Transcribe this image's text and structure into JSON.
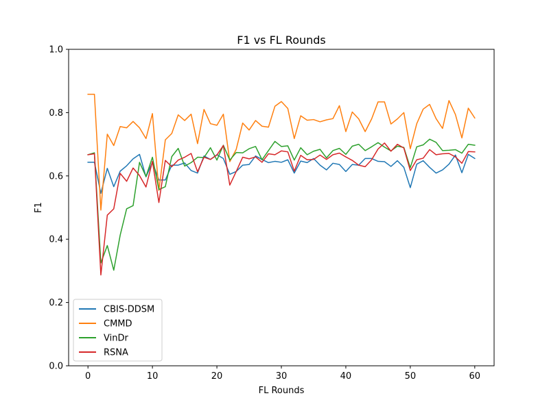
{
  "chart_data": {
    "type": "line",
    "title": "F1 vs FL Rounds",
    "xlabel": "FL Rounds",
    "ylabel": "F1",
    "xlim": [
      -3,
      63
    ],
    "ylim": [
      0.0,
      1.0
    ],
    "xticks": [
      "0",
      "10",
      "20",
      "30",
      "40",
      "50",
      "60"
    ],
    "xtick_values": [
      0,
      10,
      20,
      30,
      40,
      50,
      60
    ],
    "yticks": [
      "0.0",
      "0.2",
      "0.4",
      "0.6",
      "0.8",
      "1.0"
    ],
    "ytick_values": [
      0.0,
      0.2,
      0.4,
      0.6,
      0.8,
      1.0
    ],
    "grid": false,
    "legend_position": "lower-left",
    "x": [
      0,
      1,
      2,
      3,
      4,
      5,
      6,
      7,
      8,
      9,
      10,
      11,
      12,
      13,
      14,
      15,
      16,
      17,
      18,
      19,
      20,
      21,
      22,
      23,
      24,
      25,
      26,
      27,
      28,
      29,
      30,
      31,
      32,
      33,
      34,
      35,
      36,
      37,
      38,
      39,
      40,
      41,
      42,
      43,
      44,
      45,
      46,
      47,
      48,
      49,
      50,
      51,
      52,
      53,
      54,
      55,
      56,
      57,
      58,
      59,
      60
    ],
    "series": [
      {
        "name": "CBIS-DDSM",
        "color": "#1f77b4",
        "values": [
          0.643,
          0.643,
          0.545,
          0.624,
          0.566,
          0.615,
          0.632,
          0.654,
          0.668,
          0.597,
          0.643,
          0.587,
          0.587,
          0.634,
          0.634,
          0.641,
          0.617,
          0.609,
          0.663,
          0.652,
          0.667,
          0.655,
          0.605,
          0.614,
          0.634,
          0.636,
          0.663,
          0.652,
          0.642,
          0.646,
          0.643,
          0.651,
          0.609,
          0.647,
          0.642,
          0.655,
          0.634,
          0.619,
          0.64,
          0.636,
          0.614,
          0.636,
          0.634,
          0.655,
          0.655,
          0.646,
          0.645,
          0.63,
          0.648,
          0.627,
          0.563,
          0.637,
          0.648,
          0.627,
          0.609,
          0.619,
          0.637,
          0.666,
          0.61,
          0.668,
          0.655
        ]
      },
      {
        "name": "CMMD",
        "color": "#ff7f0e",
        "values": [
          0.858,
          0.858,
          0.492,
          0.732,
          0.696,
          0.756,
          0.752,
          0.772,
          0.752,
          0.718,
          0.797,
          0.554,
          0.714,
          0.734,
          0.793,
          0.775,
          0.795,
          0.702,
          0.81,
          0.765,
          0.76,
          0.795,
          0.645,
          0.684,
          0.767,
          0.745,
          0.775,
          0.757,
          0.754,
          0.82,
          0.835,
          0.813,
          0.718,
          0.79,
          0.776,
          0.778,
          0.771,
          0.777,
          0.781,
          0.822,
          0.74,
          0.802,
          0.78,
          0.74,
          0.78,
          0.834,
          0.834,
          0.764,
          0.78,
          0.8,
          0.686,
          0.765,
          0.811,
          0.826,
          0.781,
          0.75,
          0.838,
          0.794,
          0.72,
          0.814,
          0.783
        ]
      },
      {
        "name": "VinDr",
        "color": "#2ca02c",
        "values": [
          0.667,
          0.673,
          0.325,
          0.38,
          0.302,
          0.413,
          0.496,
          0.506,
          0.643,
          0.598,
          0.659,
          0.557,
          0.566,
          0.661,
          0.687,
          0.631,
          0.642,
          0.659,
          0.658,
          0.689,
          0.65,
          0.697,
          0.65,
          0.674,
          0.673,
          0.686,
          0.693,
          0.651,
          0.68,
          0.709,
          0.693,
          0.695,
          0.65,
          0.689,
          0.667,
          0.678,
          0.684,
          0.657,
          0.68,
          0.687,
          0.668,
          0.694,
          0.7,
          0.68,
          0.692,
          0.705,
          0.691,
          0.679,
          0.694,
          0.69,
          0.626,
          0.692,
          0.698,
          0.716,
          0.706,
          0.68,
          0.681,
          0.683,
          0.672,
          0.7,
          0.697
        ]
      },
      {
        "name": "RSNA",
        "color": "#d62728",
        "values": [
          0.667,
          0.67,
          0.287,
          0.476,
          0.496,
          0.608,
          0.583,
          0.625,
          0.601,
          0.565,
          0.646,
          0.516,
          0.649,
          0.629,
          0.65,
          0.659,
          0.671,
          0.613,
          0.659,
          0.652,
          0.666,
          0.696,
          0.571,
          0.614,
          0.659,
          0.654,
          0.66,
          0.643,
          0.67,
          0.667,
          0.679,
          0.676,
          0.615,
          0.665,
          0.651,
          0.652,
          0.666,
          0.652,
          0.667,
          0.672,
          0.66,
          0.649,
          0.634,
          0.629,
          0.651,
          0.685,
          0.704,
          0.678,
          0.7,
          0.688,
          0.617,
          0.651,
          0.656,
          0.683,
          0.667,
          0.67,
          0.671,
          0.66,
          0.64,
          0.677,
          0.676
        ]
      }
    ]
  }
}
